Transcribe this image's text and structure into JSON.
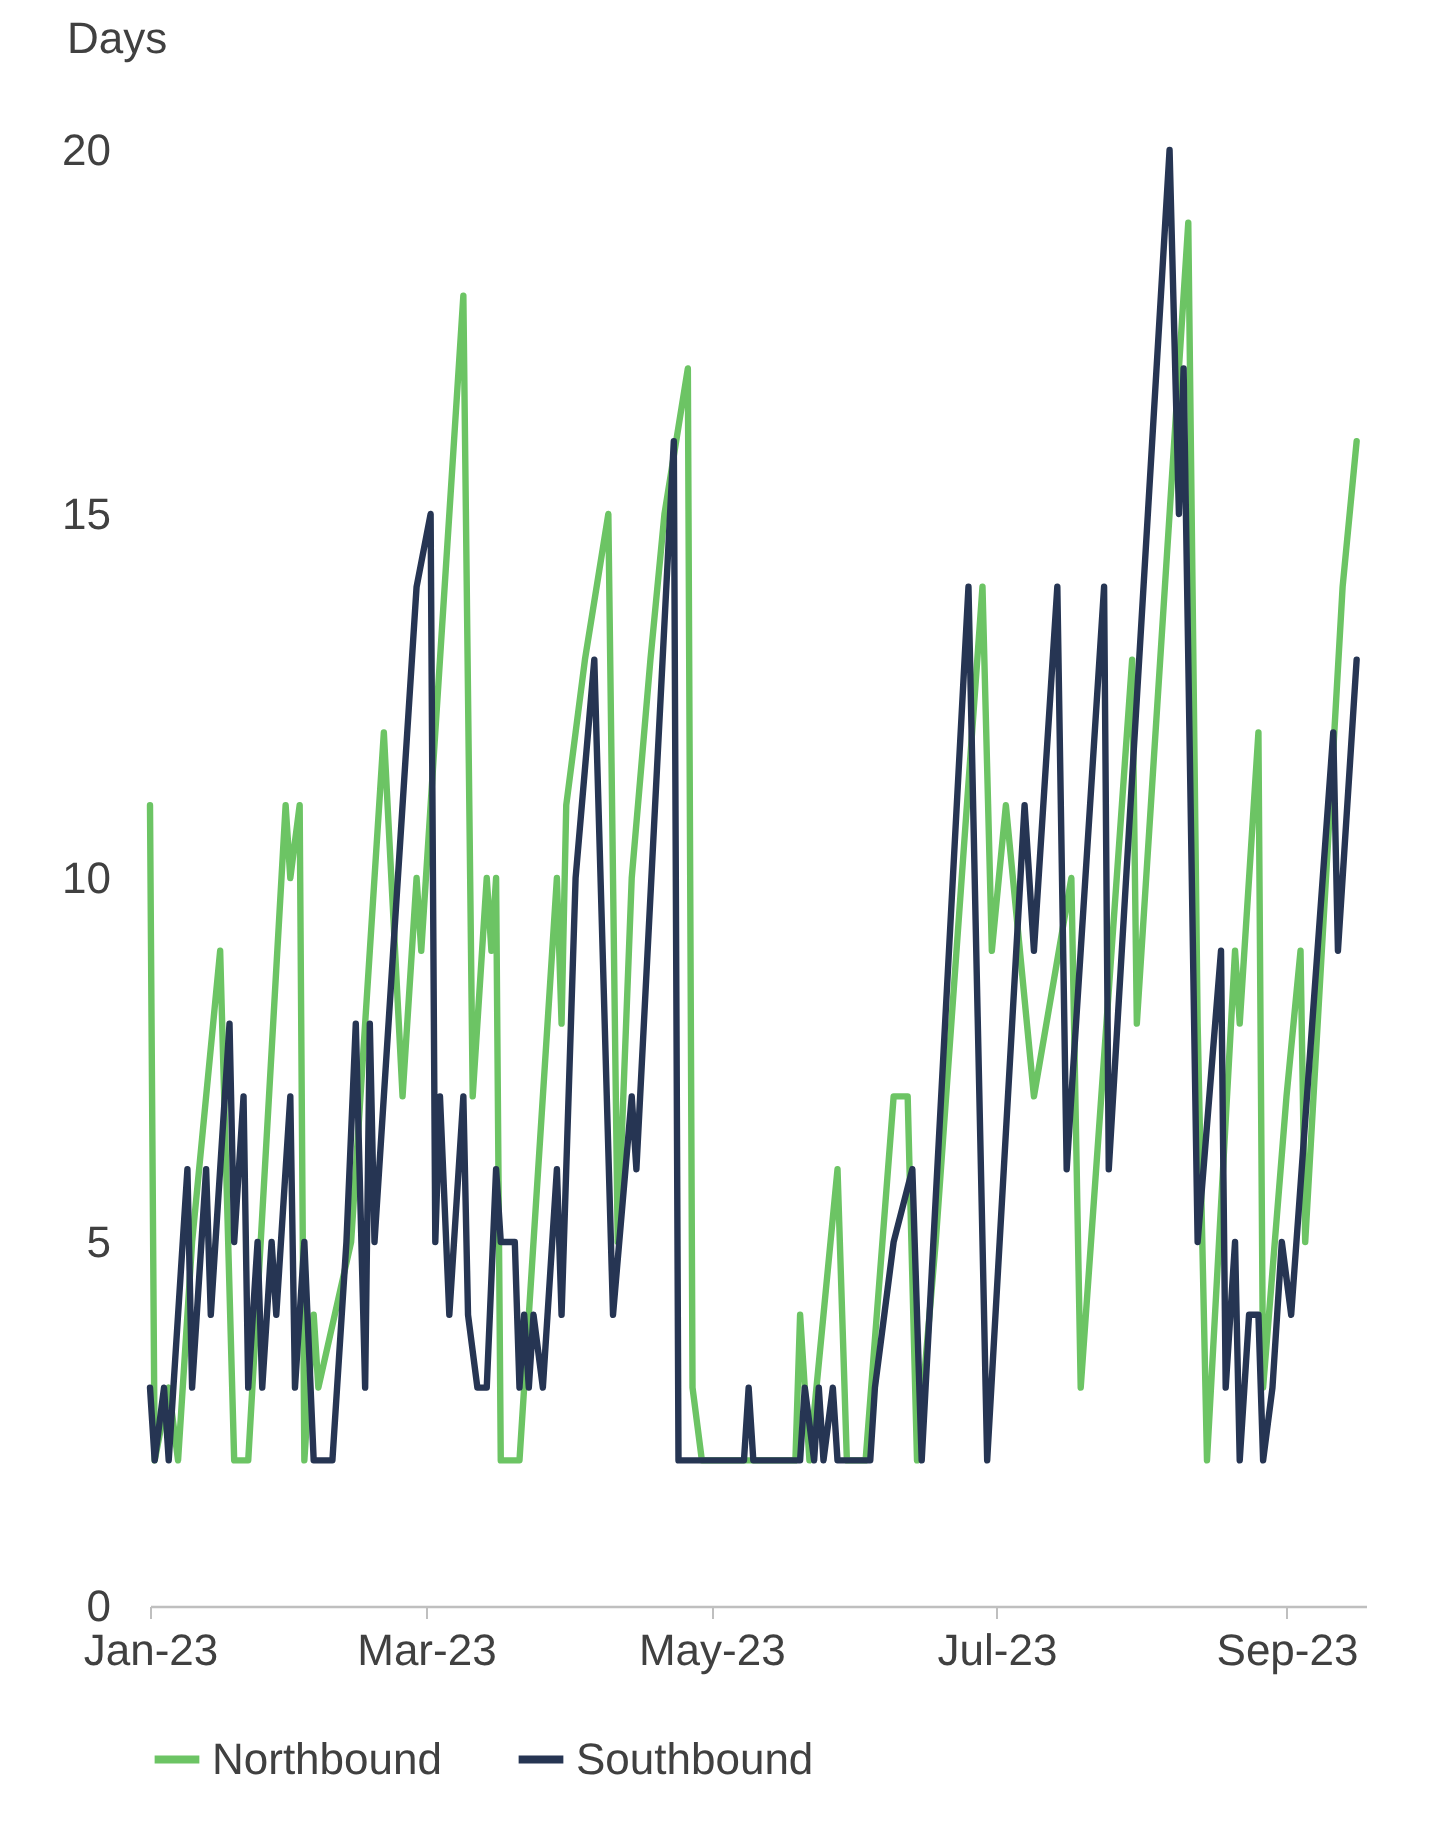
{
  "chart_data": {
    "type": "line",
    "ylabel": "Days",
    "legend": "bottom",
    "grid": false,
    "line_style": "solid",
    "marker": "none",
    "xlim": [
      "2023-01-01",
      "2023-09-18"
    ],
    "xticks": [
      {
        "value": "2023-01-01",
        "label": "Jan-23"
      },
      {
        "value": "2023-03-01",
        "label": "Mar-23"
      },
      {
        "value": "2023-05-01",
        "label": "May-23"
      },
      {
        "value": "2023-07-01",
        "label": "Jul-23"
      },
      {
        "value": "2023-09-01",
        "label": "Sep-23"
      }
    ],
    "ylim": [
      0,
      20
    ],
    "yticks": [
      0,
      5,
      10,
      15,
      20
    ],
    "series": [
      {
        "name": "Northbound",
        "color": "#6cc464",
        "x": [
          "2023-01-01",
          "2023-01-02",
          "2023-01-05",
          "2023-01-07",
          "2023-01-10",
          "2023-01-16",
          "2023-01-19",
          "2023-01-22",
          "2023-01-30",
          "2023-01-31",
          "2023-02-02",
          "2023-02-03",
          "2023-02-05",
          "2023-02-06",
          "2023-02-13",
          "2023-02-20",
          "2023-02-24",
          "2023-02-27",
          "2023-02-28",
          "2023-03-09",
          "2023-03-11",
          "2023-03-14",
          "2023-03-15",
          "2023-03-16",
          "2023-03-17",
          "2023-03-21",
          "2023-03-29",
          "2023-03-30",
          "2023-03-31",
          "2023-04-02",
          "2023-04-04",
          "2023-04-09",
          "2023-04-11",
          "2023-04-14",
          "2023-04-18",
          "2023-04-21",
          "2023-04-26",
          "2023-04-27",
          "2023-04-29",
          "2023-05-19",
          "2023-05-20",
          "2023-05-22",
          "2023-05-28",
          "2023-05-30",
          "2023-06-03",
          "2023-06-09",
          "2023-06-12",
          "2023-06-14",
          "2023-06-18",
          "2023-06-28",
          "2023-06-30",
          "2023-07-03",
          "2023-07-09",
          "2023-07-17",
          "2023-07-19",
          "2023-07-30",
          "2023-07-31",
          "2023-08-11",
          "2023-08-13",
          "2023-08-15",
          "2023-08-21",
          "2023-08-22",
          "2023-08-26",
          "2023-08-27",
          "2023-09-01",
          "2023-09-04",
          "2023-09-05",
          "2023-09-13",
          "2023-09-16"
        ],
        "values": [
          11,
          2,
          3,
          2,
          5,
          9,
          2,
          2,
          11,
          10,
          11,
          2,
          4,
          3,
          5,
          12,
          7,
          10,
          9,
          18,
          7,
          10,
          9,
          10,
          2,
          2,
          10,
          8,
          11,
          12,
          13,
          15,
          5,
          10,
          13,
          15,
          17,
          3,
          2,
          2,
          4,
          2,
          6,
          2,
          2,
          7,
          7,
          2,
          5,
          14,
          9,
          11,
          7,
          10,
          3,
          13,
          8,
          19,
          8,
          2,
          9,
          8,
          12,
          3,
          7,
          9,
          5,
          14,
          16
        ]
      },
      {
        "name": "Southbound",
        "color": "#263553",
        "x": [
          "2023-01-01",
          "2023-01-02",
          "2023-01-04",
          "2023-01-05",
          "2023-01-09",
          "2023-01-10",
          "2023-01-13",
          "2023-01-14",
          "2023-01-18",
          "2023-01-19",
          "2023-01-21",
          "2023-01-22",
          "2023-01-24",
          "2023-01-25",
          "2023-01-27",
          "2023-01-28",
          "2023-01-29",
          "2023-01-31",
          "2023-02-01",
          "2023-02-03",
          "2023-02-05",
          "2023-02-09",
          "2023-02-12",
          "2023-02-14",
          "2023-02-16",
          "2023-02-17",
          "2023-02-18",
          "2023-02-26",
          "2023-02-27",
          "2023-03-02",
          "2023-03-03",
          "2023-03-04",
          "2023-03-06",
          "2023-03-09",
          "2023-03-10",
          "2023-03-12",
          "2023-03-14",
          "2023-03-16",
          "2023-03-17",
          "2023-03-20",
          "2023-03-21",
          "2023-03-22",
          "2023-03-23",
          "2023-03-24",
          "2023-03-26",
          "2023-03-29",
          "2023-03-30",
          "2023-04-02",
          "2023-04-06",
          "2023-04-10",
          "2023-04-14",
          "2023-04-15",
          "2023-04-23",
          "2023-04-24",
          "2023-05-08",
          "2023-05-09",
          "2023-05-10",
          "2023-05-20",
          "2023-05-21",
          "2023-05-23",
          "2023-05-24",
          "2023-05-25",
          "2023-05-27",
          "2023-05-28",
          "2023-06-04",
          "2023-06-05",
          "2023-06-07",
          "2023-06-09",
          "2023-06-13",
          "2023-06-15",
          "2023-06-25",
          "2023-06-29",
          "2023-07-07",
          "2023-07-09",
          "2023-07-14",
          "2023-07-16",
          "2023-07-24",
          "2023-07-25",
          "2023-08-07",
          "2023-08-09",
          "2023-08-10",
          "2023-08-13",
          "2023-08-18",
          "2023-08-19",
          "2023-08-21",
          "2023-08-22",
          "2023-08-24",
          "2023-08-26",
          "2023-08-27",
          "2023-08-29",
          "2023-08-31",
          "2023-09-02",
          "2023-09-11",
          "2023-09-12",
          "2023-09-16"
        ],
        "values": [
          3,
          2,
          3,
          2,
          6,
          3,
          6,
          4,
          8,
          5,
          7,
          3,
          5,
          3,
          5,
          4,
          5,
          7,
          3,
          5,
          2,
          2,
          5,
          8,
          3,
          8,
          5,
          13,
          14,
          15,
          5,
          7,
          4,
          7,
          4,
          3,
          3,
          6,
          5,
          5,
          3,
          4,
          3,
          4,
          3,
          6,
          4,
          10,
          13,
          4,
          7,
          6,
          16,
          2,
          2,
          3,
          2,
          2,
          3,
          2,
          3,
          2,
          3,
          2,
          2,
          3,
          4,
          5,
          6,
          2,
          14,
          2,
          11,
          9,
          14,
          6,
          14,
          6,
          20,
          15,
          17,
          5,
          9,
          3,
          5,
          2,
          4,
          4,
          2,
          3,
          5,
          4,
          12,
          9,
          13
        ]
      }
    ]
  }
}
